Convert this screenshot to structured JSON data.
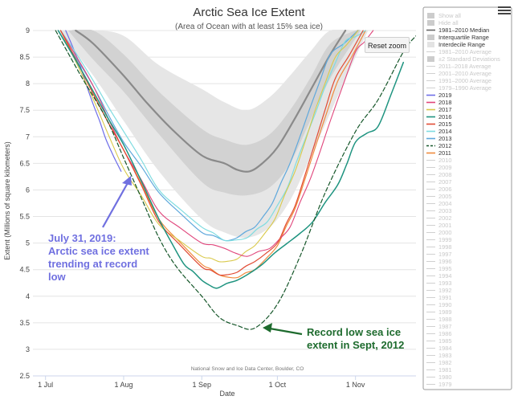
{
  "chart_data": {
    "type": "line",
    "title": "Arctic Sea Ice Extent",
    "subtitle": "(Area of Ocean with at least 15% sea ice)",
    "xlabel": "Date",
    "ylabel": "Extent (Millions of square kilometers)",
    "ylim": [
      2.5,
      9
    ],
    "yticks": [
      "2.5",
      "3",
      "3.5",
      "4",
      "4.5",
      "5",
      "5.5",
      "6",
      "6.5",
      "7",
      "7.5",
      "8",
      "8.5",
      "9"
    ],
    "xlim": [
      "2020-06-26",
      "2020-11-25"
    ],
    "xticks": [
      {
        "date": "2020-07-01",
        "label": "1 Jul"
      },
      {
        "date": "2020-08-01",
        "label": "1 Aug"
      },
      {
        "date": "2020-09-01",
        "label": "1 Sep"
      },
      {
        "date": "2020-10-01",
        "label": "1 Oct"
      },
      {
        "date": "2020-11-01",
        "label": "1 Nov"
      }
    ],
    "grid": "horizontal",
    "credit": "National Snow and Ice Data Center, Boulder, CO",
    "bands": [
      {
        "name": "Interdecile Range",
        "color": "#e6e6e6",
        "x": [
          "2020-07-06",
          "2020-07-20",
          "2020-08-01",
          "2020-08-15",
          "2020-09-01",
          "2020-09-10",
          "2020-09-19",
          "2020-09-28",
          "2020-10-06",
          "2020-10-14",
          "2020-10-22",
          "2020-11-01",
          "2020-11-06"
        ],
        "low": [
          9.0,
          8.15,
          7.3,
          6.35,
          5.45,
          5.2,
          5.1,
          5.3,
          5.8,
          6.6,
          7.45,
          8.5,
          9.0
        ],
        "high": [
          9.0,
          9.0,
          8.9,
          8.35,
          7.9,
          7.65,
          7.5,
          7.75,
          8.15,
          8.6,
          9.0,
          9.0,
          9.0
        ]
      },
      {
        "name": "Interquartile Range",
        "color": "#d2d2d2",
        "x": [
          "2020-07-10",
          "2020-07-20",
          "2020-08-01",
          "2020-08-15",
          "2020-09-01",
          "2020-09-10",
          "2020-09-19",
          "2020-09-28",
          "2020-10-06",
          "2020-10-14",
          "2020-10-22",
          "2020-11-01",
          "2020-11-03"
        ],
        "low": [
          9.0,
          8.45,
          7.85,
          7.05,
          6.15,
          5.95,
          5.9,
          6.05,
          6.5,
          7.3,
          8.1,
          8.85,
          9.0
        ],
        "high": [
          9.0,
          9.0,
          8.55,
          7.85,
          7.15,
          6.95,
          6.85,
          7.05,
          7.5,
          8.1,
          8.75,
          9.0,
          9.0
        ]
      }
    ],
    "series": [
      {
        "name": "1981-2010 Median",
        "color": "#8a8a8a",
        "width": 2.2,
        "dash": "",
        "x": [
          "2020-07-13",
          "2020-07-20",
          "2020-08-01",
          "2020-08-10",
          "2020-08-20",
          "2020-09-01",
          "2020-09-10",
          "2020-09-15",
          "2020-09-20",
          "2020-09-25",
          "2020-10-01",
          "2020-10-08",
          "2020-10-15",
          "2020-10-22",
          "2020-10-28"
        ],
        "y": [
          9.0,
          8.75,
          8.15,
          7.65,
          7.15,
          6.65,
          6.5,
          6.38,
          6.35,
          6.5,
          6.8,
          7.35,
          7.95,
          8.55,
          9.0
        ]
      },
      {
        "name": "2019",
        "color": "#6e6ee8",
        "width": 1.2,
        "dash": "",
        "x": [
          "2020-07-09",
          "2020-07-15",
          "2020-07-20",
          "2020-07-25",
          "2020-07-31"
        ],
        "y": [
          9.0,
          8.3,
          7.6,
          6.95,
          6.35
        ]
      },
      {
        "name": "2018",
        "color": "#e0457b",
        "width": 1.1,
        "dash": "",
        "x": [
          "2020-07-07",
          "2020-07-20",
          "2020-08-01",
          "2020-08-15",
          "2020-09-01",
          "2020-09-10",
          "2020-09-19",
          "2020-09-28",
          "2020-10-06",
          "2020-10-14",
          "2020-10-22",
          "2020-11-01",
          "2020-11-08"
        ],
        "y": [
          9.0,
          7.95,
          6.75,
          5.6,
          5.0,
          4.9,
          4.75,
          4.9,
          5.3,
          6.2,
          7.3,
          8.6,
          9.0
        ]
      },
      {
        "name": "2017",
        "color": "#d9c94a",
        "width": 1.1,
        "dash": "",
        "x": [
          "2020-07-07",
          "2020-07-20",
          "2020-08-01",
          "2020-08-15",
          "2020-09-01",
          "2020-09-08",
          "2020-09-15",
          "2020-09-22",
          "2020-09-30",
          "2020-10-08",
          "2020-10-16",
          "2020-10-24",
          "2020-11-02"
        ],
        "y": [
          9.0,
          7.7,
          6.4,
          5.35,
          4.75,
          4.65,
          4.7,
          4.95,
          5.45,
          6.35,
          7.5,
          8.5,
          9.0
        ]
      },
      {
        "name": "2016",
        "color": "#1f9480",
        "width": 1.5,
        "dash": "",
        "x": [
          "2020-07-06",
          "2020-07-20",
          "2020-08-01",
          "2020-08-15",
          "2020-08-25",
          "2020-09-01",
          "2020-09-07",
          "2020-09-15",
          "2020-09-25",
          "2020-10-05",
          "2020-10-15",
          "2020-10-25",
          "2020-11-01",
          "2020-11-10",
          "2020-11-20"
        ],
        "y": [
          9.0,
          7.85,
          6.85,
          5.45,
          4.6,
          4.3,
          4.15,
          4.3,
          4.6,
          5.0,
          5.4,
          6.1,
          6.9,
          7.2,
          8.4
        ]
      },
      {
        "name": "2015",
        "color": "#e14b34",
        "width": 1.2,
        "dash": "",
        "x": [
          "2020-07-07",
          "2020-07-20",
          "2020-08-01",
          "2020-08-15",
          "2020-09-01",
          "2020-09-08",
          "2020-09-15",
          "2020-09-22",
          "2020-10-01",
          "2020-10-08",
          "2020-10-16",
          "2020-10-24",
          "2020-11-04"
        ],
        "y": [
          9.0,
          7.8,
          6.75,
          5.4,
          4.55,
          4.4,
          4.45,
          4.65,
          5.0,
          5.7,
          6.9,
          8.1,
          9.0
        ]
      },
      {
        "name": "2014",
        "color": "#7fdce0",
        "width": 1.2,
        "dash": "",
        "x": [
          "2020-07-07",
          "2020-07-20",
          "2020-08-01",
          "2020-08-15",
          "2020-09-01",
          "2020-09-10",
          "2020-09-19",
          "2020-09-27",
          "2020-10-05",
          "2020-10-12",
          "2020-10-20",
          "2020-10-28",
          "2020-11-05"
        ],
        "y": [
          9.0,
          8.05,
          7.1,
          6.0,
          5.3,
          5.05,
          5.1,
          5.4,
          6.05,
          6.95,
          7.95,
          8.8,
          9.0
        ]
      },
      {
        "name": "2013",
        "color": "#5fa8dc",
        "width": 1.2,
        "dash": "",
        "x": [
          "2020-07-06",
          "2020-07-20",
          "2020-08-01",
          "2020-08-15",
          "2020-09-01",
          "2020-09-10",
          "2020-09-15",
          "2020-09-22",
          "2020-09-29",
          "2020-10-06",
          "2020-10-14",
          "2020-10-22",
          "2020-11-02"
        ],
        "y": [
          9.0,
          7.95,
          6.9,
          5.95,
          5.2,
          5.05,
          5.1,
          5.3,
          5.75,
          6.5,
          7.55,
          8.55,
          9.0
        ]
      },
      {
        "name": "2012",
        "color": "#16572a",
        "width": 1.2,
        "dash": "5,3",
        "x": [
          "2020-07-05",
          "2020-07-15",
          "2020-07-25",
          "2020-08-01",
          "2020-08-08",
          "2020-08-15",
          "2020-08-22",
          "2020-09-01",
          "2020-09-08",
          "2020-09-15",
          "2020-09-22",
          "2020-10-01",
          "2020-10-10",
          "2020-10-20",
          "2020-11-01",
          "2020-11-10",
          "2020-11-20",
          "2020-11-25"
        ],
        "y": [
          9.0,
          8.15,
          7.35,
          6.6,
          5.85,
          5.1,
          4.55,
          4.0,
          3.6,
          3.45,
          3.4,
          3.85,
          4.75,
          5.95,
          7.1,
          7.7,
          8.6,
          8.9
        ]
      },
      {
        "name": "2011",
        "color": "#f08a3c",
        "width": 1.2,
        "dash": "",
        "x": [
          "2020-07-07",
          "2020-07-20",
          "2020-08-01",
          "2020-08-15",
          "2020-09-01",
          "2020-09-08",
          "2020-09-15",
          "2020-09-22",
          "2020-10-01",
          "2020-10-08",
          "2020-10-16",
          "2020-10-25",
          "2020-11-05"
        ],
        "y": [
          9.0,
          7.8,
          6.75,
          5.45,
          4.6,
          4.4,
          4.35,
          4.5,
          4.95,
          5.65,
          6.8,
          8.05,
          9.0
        ]
      }
    ],
    "annotations": [
      {
        "id": "2019",
        "lines": [
          "July 31, 2019:",
          "Arctic sea ice extent",
          "trending at record",
          "low"
        ],
        "color": "#7070e0"
      },
      {
        "id": "2012",
        "lines": [
          "Record low sea ice",
          "extent in Sept, 2012"
        ],
        "color": "#1e6b2e"
      }
    ],
    "legend": {
      "placement": "right",
      "items": [
        {
          "label": "Show all",
          "kind": "box",
          "color": "#cccccc",
          "dim": true
        },
        {
          "label": "Hide all",
          "kind": "box",
          "color": "#cccccc",
          "dim": true
        },
        {
          "label": "1981–2010 Median",
          "kind": "line",
          "color": "#666666",
          "dim": false
        },
        {
          "label": "Interquartile Range",
          "kind": "box",
          "color": "#cccccc",
          "dim": false
        },
        {
          "label": "Interdecile Range",
          "kind": "box",
          "color": "#e3e3e3",
          "dim": false
        },
        {
          "label": "1981–2010 Average",
          "kind": "line",
          "color": "#d0d0d0",
          "dim": true
        },
        {
          "label": "±2 Standard Deviations",
          "kind": "box",
          "color": "#cccccc",
          "dim": true
        },
        {
          "label": "2011–2018 Average",
          "kind": "line",
          "color": "#d0d0d0",
          "dim": true
        },
        {
          "label": "2001–2010 Average",
          "kind": "line",
          "color": "#d0d0d0",
          "dim": true
        },
        {
          "label": "1991–2000 Average",
          "kind": "line",
          "color": "#d0d0d0",
          "dim": true
        },
        {
          "label": "1979–1990 Average",
          "kind": "line",
          "color": "#d0d0d0",
          "dim": true
        },
        {
          "label": "2019",
          "kind": "line",
          "color": "#6e6ee8",
          "dim": false
        },
        {
          "label": "2018",
          "kind": "line",
          "color": "#e0457b",
          "dim": false
        },
        {
          "label": "2017",
          "kind": "line",
          "color": "#d9c94a",
          "dim": false
        },
        {
          "label": "2016",
          "kind": "line",
          "color": "#1f9480",
          "dim": false
        },
        {
          "label": "2015",
          "kind": "line",
          "color": "#e14b34",
          "dim": false
        },
        {
          "label": "2014",
          "kind": "line",
          "color": "#7fdce0",
          "dim": false
        },
        {
          "label": "2013",
          "kind": "line",
          "color": "#5fa8dc",
          "dim": false
        },
        {
          "label": "2012",
          "kind": "dash",
          "color": "#16572a",
          "dim": false
        },
        {
          "label": "2011",
          "kind": "line",
          "color": "#f08a3c",
          "dim": false
        },
        {
          "label": "2010",
          "kind": "line",
          "color": "#d0d0d0",
          "dim": true
        },
        {
          "label": "2009",
          "kind": "line",
          "color": "#d0d0d0",
          "dim": true
        },
        {
          "label": "2008",
          "kind": "line",
          "color": "#d0d0d0",
          "dim": true
        },
        {
          "label": "2007",
          "kind": "line",
          "color": "#d0d0d0",
          "dim": true
        },
        {
          "label": "2006",
          "kind": "line",
          "color": "#d0d0d0",
          "dim": true
        },
        {
          "label": "2005",
          "kind": "line",
          "color": "#d0d0d0",
          "dim": true
        },
        {
          "label": "2004",
          "kind": "line",
          "color": "#d0d0d0",
          "dim": true
        },
        {
          "label": "2003",
          "kind": "line",
          "color": "#d0d0d0",
          "dim": true
        },
        {
          "label": "2002",
          "kind": "line",
          "color": "#d0d0d0",
          "dim": true
        },
        {
          "label": "2001",
          "kind": "line",
          "color": "#d0d0d0",
          "dim": true
        },
        {
          "label": "2000",
          "kind": "line",
          "color": "#d0d0d0",
          "dim": true
        },
        {
          "label": "1999",
          "kind": "line",
          "color": "#d0d0d0",
          "dim": true
        },
        {
          "label": "1998",
          "kind": "line",
          "color": "#d0d0d0",
          "dim": true
        },
        {
          "label": "1997",
          "kind": "line",
          "color": "#d0d0d0",
          "dim": true
        },
        {
          "label": "1996",
          "kind": "line",
          "color": "#d0d0d0",
          "dim": true
        },
        {
          "label": "1995",
          "kind": "line",
          "color": "#d0d0d0",
          "dim": true
        },
        {
          "label": "1994",
          "kind": "line",
          "color": "#d0d0d0",
          "dim": true
        },
        {
          "label": "1993",
          "kind": "line",
          "color": "#d0d0d0",
          "dim": true
        },
        {
          "label": "1992",
          "kind": "line",
          "color": "#d0d0d0",
          "dim": true
        },
        {
          "label": "1991",
          "kind": "line",
          "color": "#d0d0d0",
          "dim": true
        },
        {
          "label": "1990",
          "kind": "line",
          "color": "#d0d0d0",
          "dim": true
        },
        {
          "label": "1989",
          "kind": "line",
          "color": "#d0d0d0",
          "dim": true
        },
        {
          "label": "1988",
          "kind": "line",
          "color": "#d0d0d0",
          "dim": true
        },
        {
          "label": "1987",
          "kind": "line",
          "color": "#d0d0d0",
          "dim": true
        },
        {
          "label": "1986",
          "kind": "line",
          "color": "#d0d0d0",
          "dim": true
        },
        {
          "label": "1985",
          "kind": "line",
          "color": "#d0d0d0",
          "dim": true
        },
        {
          "label": "1984",
          "kind": "line",
          "color": "#d0d0d0",
          "dim": true
        },
        {
          "label": "1983",
          "kind": "line",
          "color": "#d0d0d0",
          "dim": true
        },
        {
          "label": "1982",
          "kind": "line",
          "color": "#d0d0d0",
          "dim": true
        },
        {
          "label": "1981",
          "kind": "line",
          "color": "#d0d0d0",
          "dim": true
        },
        {
          "label": "1980",
          "kind": "line",
          "color": "#d0d0d0",
          "dim": true
        },
        {
          "label": "1979",
          "kind": "line",
          "color": "#d0d0d0",
          "dim": true
        }
      ]
    }
  },
  "controls": {
    "reset_zoom": "Reset zoom",
    "menu_icon": "hamburger-menu-icon"
  }
}
